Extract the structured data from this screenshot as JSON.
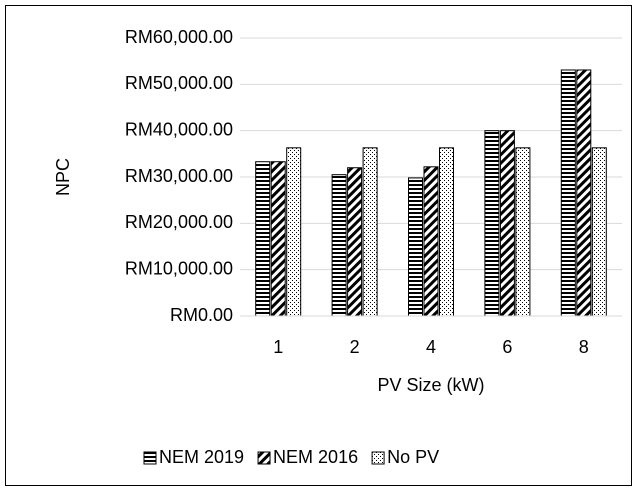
{
  "chart_data": {
    "type": "bar",
    "y_label": "NPC",
    "x_label": "PV Size (kW)",
    "categories": [
      "1",
      "2",
      "4",
      "6",
      "8"
    ],
    "series": [
      {
        "name": "NEM 2019",
        "color": "#000000",
        "values": [
          33300,
          30500,
          29800,
          40000,
          53100
        ]
      },
      {
        "name": "NEM 2016",
        "color": "#000000",
        "values": [
          33300,
          32000,
          32200,
          40000,
          53100
        ]
      },
      {
        "name": "No PV",
        "color": "#000000",
        "values": [
          36300,
          36300,
          36300,
          36300,
          36300
        ]
      }
    ],
    "ylim": [
      0,
      60000
    ],
    "yticks": [
      {
        "value": 0,
        "label": "RM0.00"
      },
      {
        "value": 10000,
        "label": "RM10,000.00"
      },
      {
        "value": 20000,
        "label": "RM20,000.00"
      },
      {
        "value": 30000,
        "label": "RM30,000.00"
      },
      {
        "value": 40000,
        "label": "RM40,000.00"
      },
      {
        "value": 50000,
        "label": "RM50,000.00"
      },
      {
        "value": 60000,
        "label": "RM60,000.00"
      }
    ],
    "grid": true,
    "legend": "bottom"
  }
}
